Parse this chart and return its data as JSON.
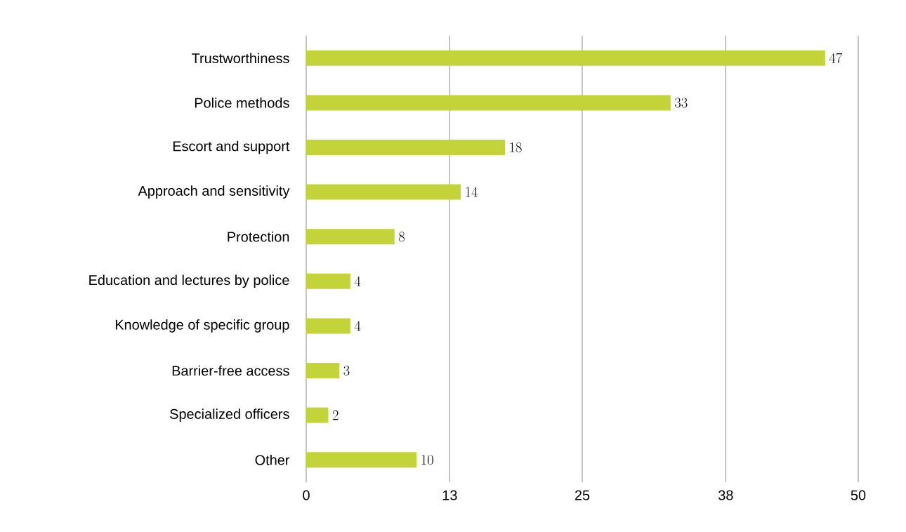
{
  "chart_data": {
    "type": "bar",
    "orientation": "horizontal",
    "categories": [
      "Trustworthiness",
      "Police methods",
      "Escort and support",
      "Approach and sensitivity",
      "Protection",
      "Education and lectures by police",
      "Knowledge of specific group",
      "Barrier-free access",
      "Specialized officers",
      "Other"
    ],
    "values": [
      47,
      33,
      18,
      14,
      8,
      4,
      4,
      3,
      2,
      10
    ],
    "color": "#c3d33a",
    "xlim": [
      0,
      50
    ],
    "xticks": [
      0,
      13,
      25,
      38,
      50
    ],
    "grid": "x",
    "data_labels": true
  }
}
